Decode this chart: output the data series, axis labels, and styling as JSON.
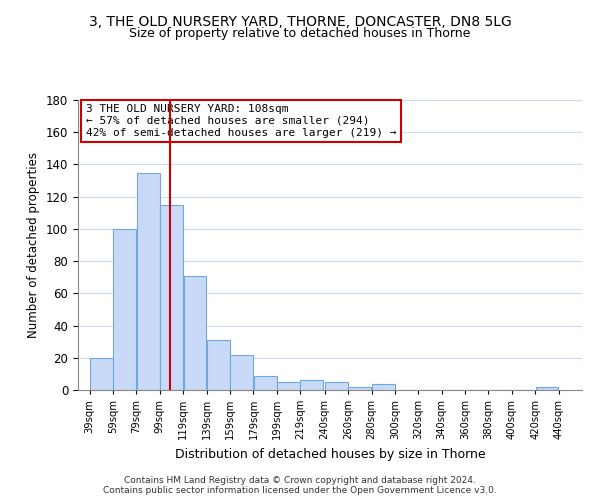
{
  "title": "3, THE OLD NURSERY YARD, THORNE, DONCASTER, DN8 5LG",
  "subtitle": "Size of property relative to detached houses in Thorne",
  "xlabel": "Distribution of detached houses by size in Thorne",
  "ylabel": "Number of detached properties",
  "bar_left_edges": [
    39,
    59,
    79,
    99,
    119,
    139,
    159,
    179,
    199,
    219,
    240,
    260,
    280,
    300,
    320,
    340,
    360,
    380,
    400,
    420
  ],
  "bar_heights": [
    20,
    100,
    135,
    115,
    71,
    31,
    22,
    9,
    5,
    6,
    5,
    2,
    4,
    0,
    0,
    0,
    0,
    0,
    0,
    2
  ],
  "bar_widths": [
    20,
    20,
    20,
    20,
    20,
    20,
    20,
    20,
    20,
    20,
    20,
    20,
    20,
    20,
    20,
    20,
    20,
    20,
    20,
    20
  ],
  "bar_color": "#c9daf8",
  "bar_edge_color": "#6fa8dc",
  "subject_line_x": 108,
  "subject_line_color": "#cc0000",
  "ylim": [
    0,
    180
  ],
  "yticks": [
    0,
    20,
    40,
    60,
    80,
    100,
    120,
    140,
    160,
    180
  ],
  "xtick_labels": [
    "39sqm",
    "59sqm",
    "79sqm",
    "99sqm",
    "119sqm",
    "139sqm",
    "159sqm",
    "179sqm",
    "199sqm",
    "219sqm",
    "240sqm",
    "260sqm",
    "280sqm",
    "300sqm",
    "320sqm",
    "340sqm",
    "360sqm",
    "380sqm",
    "400sqm",
    "420sqm",
    "440sqm"
  ],
  "xtick_positions": [
    39,
    59,
    79,
    99,
    119,
    139,
    159,
    179,
    199,
    219,
    240,
    260,
    280,
    300,
    320,
    340,
    360,
    380,
    400,
    420,
    440
  ],
  "annotation_text": "3 THE OLD NURSERY YARD: 108sqm\n← 57% of detached houses are smaller (294)\n42% of semi-detached houses are larger (219) →",
  "annotation_box_color": "#ffffff",
  "annotation_box_edge": "#cc0000",
  "footer_line1": "Contains HM Land Registry data © Crown copyright and database right 2024.",
  "footer_line2": "Contains public sector information licensed under the Open Government Licence v3.0.",
  "background_color": "#ffffff",
  "grid_color": "#c9daf8"
}
